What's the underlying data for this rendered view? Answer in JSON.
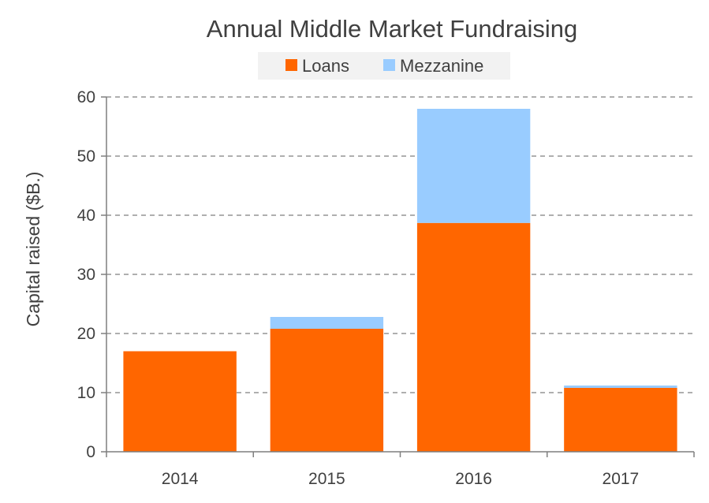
{
  "chart_data": {
    "type": "bar",
    "stacked": true,
    "title": "Annual Middle Market Fundraising",
    "xlabel": "",
    "ylabel": "Capital raised ($B.)",
    "categories": [
      "2014",
      "2015",
      "2016",
      "2017"
    ],
    "series": [
      {
        "name": "Loans",
        "color": "#ff6600",
        "values": [
          17,
          20.8,
          38.7,
          10.8
        ]
      },
      {
        "name": "Mezzanine",
        "color": "#99ccff",
        "values": [
          0,
          2,
          19.3,
          0.4
        ]
      }
    ],
    "ylim": [
      0,
      60
    ],
    "yticks": [
      0,
      10,
      20,
      30,
      40,
      50,
      60
    ],
    "grid": true,
    "legend": "top-center"
  }
}
